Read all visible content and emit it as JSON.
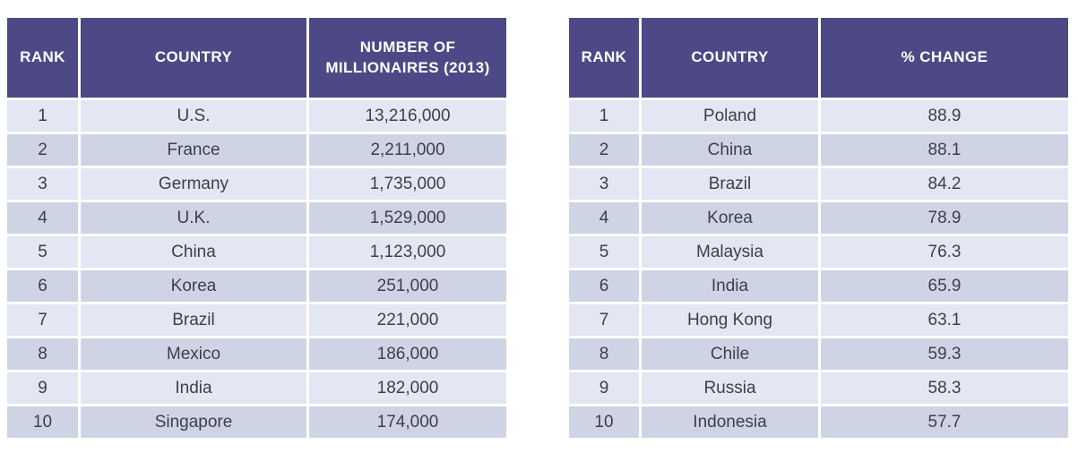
{
  "colors": {
    "header_bg": "#4D4986",
    "header_text": "#FFFFFF",
    "row_light_bg": "#E3E6F3",
    "row_dark_bg": "#CFD4E5",
    "body_text": "#3F3E48",
    "page_bg": "#FFFFFF"
  },
  "tables": [
    {
      "name": "number-of-millionaires-2013",
      "columns": [
        "RANK",
        "COUNTRY",
        "NUMBER OF MILLIONAIRES (2013)"
      ],
      "rows": [
        [
          "1",
          "U.S.",
          "13,216,000"
        ],
        [
          "2",
          "France",
          "2,211,000"
        ],
        [
          "3",
          "Germany",
          "1,735,000"
        ],
        [
          "4",
          "U.K.",
          "1,529,000"
        ],
        [
          "5",
          "China",
          "1,123,000"
        ],
        [
          "6",
          "Korea",
          "251,000"
        ],
        [
          "7",
          "Brazil",
          "221,000"
        ],
        [
          "8",
          "Mexico",
          "186,000"
        ],
        [
          "9",
          "India",
          "182,000"
        ],
        [
          "10",
          "Singapore",
          "174,000"
        ]
      ]
    },
    {
      "name": "percent-change",
      "columns": [
        "RANK",
        "COUNTRY",
        "% CHANGE"
      ],
      "rows": [
        [
          "1",
          "Poland",
          "88.9"
        ],
        [
          "2",
          "China",
          "88.1"
        ],
        [
          "3",
          "Brazil",
          "84.2"
        ],
        [
          "4",
          "Korea",
          "78.9"
        ],
        [
          "5",
          "Malaysia",
          "76.3"
        ],
        [
          "6",
          "India",
          "65.9"
        ],
        [
          "7",
          "Hong Kong",
          "63.1"
        ],
        [
          "8",
          "Chile",
          "59.3"
        ],
        [
          "9",
          "Russia",
          "58.3"
        ],
        [
          "10",
          "Indonesia",
          "57.7"
        ]
      ]
    }
  ],
  "chart_data": [
    {
      "type": "table",
      "title": "NUMBER OF MILLIONAIRES (2013)",
      "columns": [
        "RANK",
        "COUNTRY",
        "NUMBER OF MILLIONAIRES (2013)"
      ],
      "categories": [
        "U.S.",
        "France",
        "Germany",
        "U.K.",
        "China",
        "Korea",
        "Brazil",
        "Mexico",
        "India",
        "Singapore"
      ],
      "ranks": [
        1,
        2,
        3,
        4,
        5,
        6,
        7,
        8,
        9,
        10
      ],
      "values": [
        13216000,
        2211000,
        1735000,
        1529000,
        1123000,
        251000,
        221000,
        186000,
        182000,
        174000
      ]
    },
    {
      "type": "table",
      "title": "% CHANGE",
      "columns": [
        "RANK",
        "COUNTRY",
        "% CHANGE"
      ],
      "categories": [
        "Poland",
        "China",
        "Brazil",
        "Korea",
        "Malaysia",
        "India",
        "Hong Kong",
        "Chile",
        "Russia",
        "Indonesia"
      ],
      "ranks": [
        1,
        2,
        3,
        4,
        5,
        6,
        7,
        8,
        9,
        10
      ],
      "values": [
        88.9,
        88.1,
        84.2,
        78.9,
        76.3,
        65.9,
        63.1,
        59.3,
        58.3,
        57.7
      ]
    }
  ]
}
